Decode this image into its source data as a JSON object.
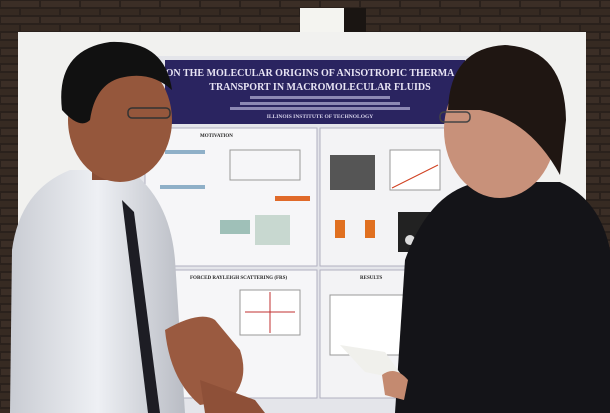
{
  "poster": {
    "title_line_1": "ON THE MOLECULAR ORIGINS OF ANISOTROPIC THERMA",
    "title_line_2": "TRANSPORT IN MACROMOLECULAR FLUIDS",
    "institution": "ILLINOIS INSTITUTE OF TECHNOLOGY",
    "sections": [
      "MOTIVATION",
      "FORCED RAYLEIGH SCATTERING (FRS)",
      "RESULTS"
    ]
  }
}
